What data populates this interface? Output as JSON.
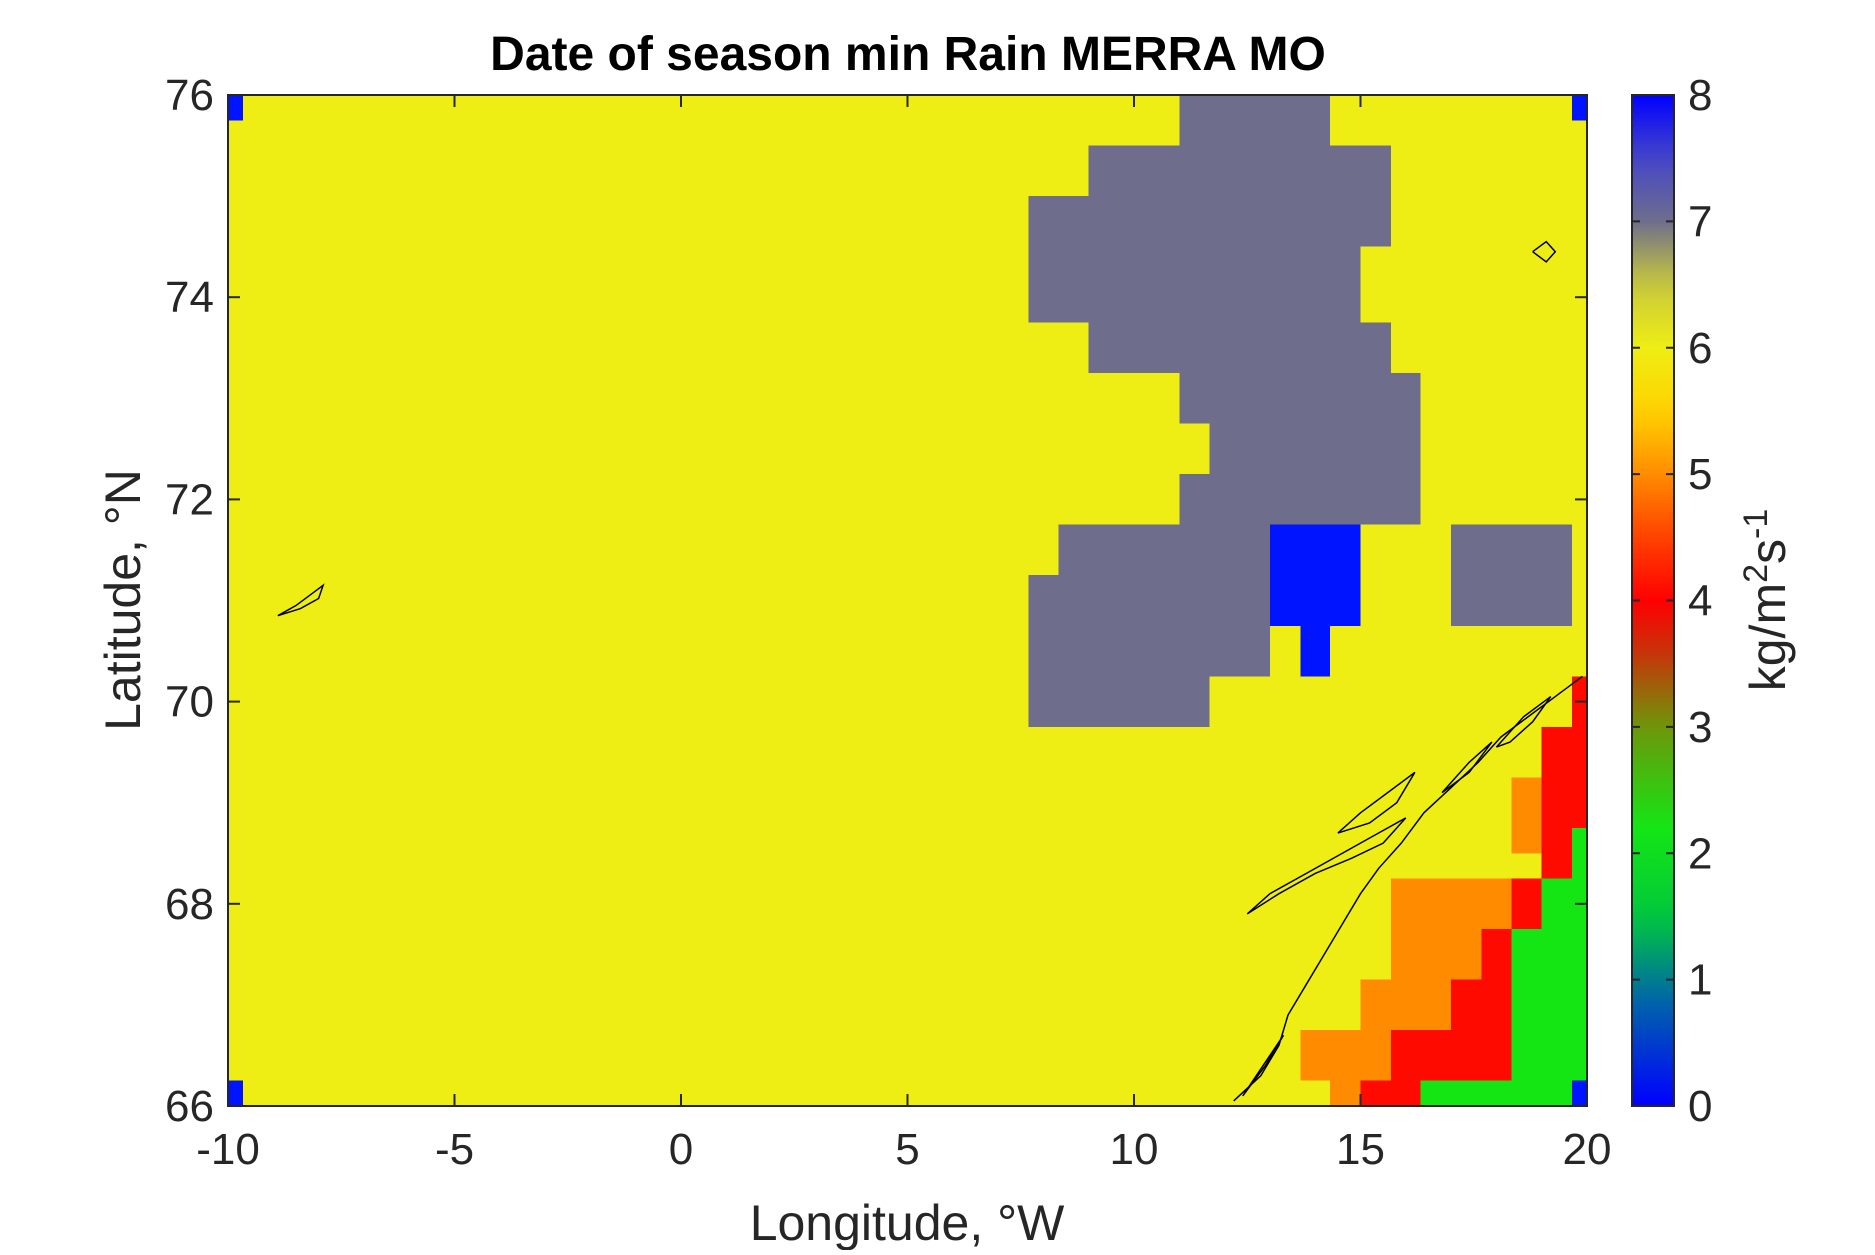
{
  "chart_data": {
    "type": "heatmap",
    "title": "Date of season min Rain MERRA MO",
    "xlabel": "Longitude, °W",
    "ylabel": "Latitude, °N",
    "xlim": [
      -10,
      20
    ],
    "ylim": [
      66,
      76
    ],
    "xticks": [
      "-10",
      "-5",
      "0",
      "5",
      "10",
      "15",
      "20"
    ],
    "yticks": [
      "66",
      "68",
      "70",
      "72",
      "74",
      "76"
    ],
    "colorbar": {
      "label": "kg/m^2s^(-1)",
      "ticks": [
        "0",
        "1",
        "2",
        "3",
        "4",
        "5",
        "6",
        "7",
        "8"
      ],
      "range": [
        0,
        8
      ],
      "colormap": "parula-jet-like (blue → green → red → orange → yellow → gray → blue)"
    },
    "background_value": 6,
    "grid_step": {
      "lon": 0.667,
      "lat": 0.5
    },
    "cells": [
      {
        "lon": [
          -10,
          -9.67
        ],
        "lat": [
          75.75,
          76
        ],
        "value": 8
      },
      {
        "lon": [
          19.67,
          20
        ],
        "lat": [
          75.75,
          76
        ],
        "value": 8
      },
      {
        "lon": [
          -10,
          -9.67
        ],
        "lat": [
          66,
          66.25
        ],
        "value": 8
      },
      {
        "lon": [
          19.67,
          20
        ],
        "lat": [
          66,
          66.25
        ],
        "value": 8
      },
      {
        "lon": [
          11,
          14.33
        ],
        "lat": [
          75.5,
          76
        ],
        "value": 7
      },
      {
        "lon": [
          9,
          15.67
        ],
        "lat": [
          75,
          75.5
        ],
        "value": 7
      },
      {
        "lon": [
          7.67,
          15.67
        ],
        "lat": [
          74.5,
          75
        ],
        "value": 7
      },
      {
        "lon": [
          7.67,
          15
        ],
        "lat": [
          73.75,
          74.5
        ],
        "value": 7
      },
      {
        "lon": [
          9,
          15.67
        ],
        "lat": [
          73.25,
          73.75
        ],
        "value": 7
      },
      {
        "lon": [
          11,
          16.33
        ],
        "lat": [
          72.75,
          73.25
        ],
        "value": 7
      },
      {
        "lon": [
          11.67,
          16.33
        ],
        "lat": [
          72.25,
          72.75
        ],
        "value": 7
      },
      {
        "lon": [
          11,
          16.33
        ],
        "lat": [
          71.75,
          72.25
        ],
        "value": 7
      },
      {
        "lon": [
          8.33,
          13
        ],
        "lat": [
          71.25,
          71.75
        ],
        "value": 7
      },
      {
        "lon": [
          7.67,
          13
        ],
        "lat": [
          70.25,
          71.25
        ],
        "value": 7
      },
      {
        "lon": [
          7.67,
          11.67
        ],
        "lat": [
          69.75,
          70.25
        ],
        "value": 7
      },
      {
        "lon": [
          13,
          15
        ],
        "lat": [
          70.75,
          71.75
        ],
        "value": 0.1
      },
      {
        "lon": [
          13.67,
          14.33
        ],
        "lat": [
          70.25,
          70.75
        ],
        "value": 0.1
      },
      {
        "lon": [
          17,
          19.67
        ],
        "lat": [
          70.75,
          71.75
        ],
        "value": 7
      },
      {
        "lon": [
          19.67,
          20
        ],
        "lat": [
          69.75,
          70.25
        ],
        "value": 4
      },
      {
        "lon": [
          19,
          20
        ],
        "lat": [
          68.75,
          69.75
        ],
        "value": 4
      },
      {
        "lon": [
          18.33,
          19
        ],
        "lat": [
          68.5,
          69.25
        ],
        "value": 5
      },
      {
        "lon": [
          19,
          19.67
        ],
        "lat": [
          68.25,
          68.75
        ],
        "value": 4
      },
      {
        "lon": [
          19.67,
          20
        ],
        "lat": [
          67.75,
          68.75
        ],
        "value": 2
      },
      {
        "lon": [
          15.67,
          18.33
        ],
        "lat": [
          67.75,
          68.25
        ],
        "value": 5
      },
      {
        "lon": [
          18.33,
          19
        ],
        "lat": [
          67.75,
          68.25
        ],
        "value": 4
      },
      {
        "lon": [
          19,
          20
        ],
        "lat": [
          66.25,
          68.25
        ],
        "value": 2
      },
      {
        "lon": [
          15.67,
          17.67
        ],
        "lat": [
          67.25,
          67.75
        ],
        "value": 5
      },
      {
        "lon": [
          17.67,
          18.33
        ],
        "lat": [
          66.75,
          67.75
        ],
        "value": 4
      },
      {
        "lon": [
          18.33,
          19
        ],
        "lat": [
          66.25,
          67.75
        ],
        "value": 2
      },
      {
        "lon": [
          15,
          17
        ],
        "lat": [
          66.75,
          67.25
        ],
        "value": 5
      },
      {
        "lon": [
          17,
          17.67
        ],
        "lat": [
          66.75,
          67.25
        ],
        "value": 4
      },
      {
        "lon": [
          13.67,
          15.67
        ],
        "lat": [
          66.25,
          66.75
        ],
        "value": 5
      },
      {
        "lon": [
          15.67,
          18.33
        ],
        "lat": [
          66.25,
          66.75
        ],
        "value": 4
      },
      {
        "lon": [
          14.33,
          15
        ],
        "lat": [
          66,
          66.25
        ],
        "value": 5
      },
      {
        "lon": [
          15,
          16.33
        ],
        "lat": [
          66,
          66.25
        ],
        "value": 4
      },
      {
        "lon": [
          16.33,
          19.67
        ],
        "lat": [
          66,
          66.25
        ],
        "value": 2
      }
    ],
    "coastlines": [
      {
        "name": "jan-mayen",
        "points": [
          [
            -8.9,
            70.85
          ],
          [
            -8.5,
            70.95
          ],
          [
            -8.2,
            71.05
          ],
          [
            -7.9,
            71.15
          ],
          [
            -8.0,
            71.02
          ],
          [
            -8.4,
            70.92
          ],
          [
            -8.9,
            70.85
          ]
        ]
      },
      {
        "name": "bear-island",
        "points": [
          [
            18.8,
            74.45
          ],
          [
            19.1,
            74.55
          ],
          [
            19.3,
            74.45
          ],
          [
            19.1,
            74.35
          ],
          [
            18.8,
            74.45
          ]
        ]
      },
      {
        "name": "norway-coast",
        "points": [
          [
            12.2,
            66.05
          ],
          [
            12.8,
            66.3
          ],
          [
            13.2,
            66.6
          ],
          [
            13.4,
            66.9
          ],
          [
            13.8,
            67.2
          ],
          [
            14.2,
            67.5
          ],
          [
            14.6,
            67.8
          ],
          [
            15.0,
            68.1
          ],
          [
            15.4,
            68.35
          ],
          [
            15.9,
            68.6
          ],
          [
            16.4,
            68.9
          ],
          [
            17.0,
            69.15
          ],
          [
            17.6,
            69.4
          ],
          [
            18.1,
            69.65
          ],
          [
            18.7,
            69.85
          ],
          [
            19.3,
            70.05
          ],
          [
            19.9,
            70.25
          ]
        ]
      },
      {
        "name": "lofoten",
        "points": [
          [
            12.5,
            67.9
          ],
          [
            13.2,
            68.1
          ],
          [
            14.0,
            68.3
          ],
          [
            14.8,
            68.45
          ],
          [
            15.5,
            68.6
          ],
          [
            16.0,
            68.85
          ],
          [
            15.4,
            68.7
          ],
          [
            14.6,
            68.5
          ],
          [
            13.8,
            68.3
          ],
          [
            13.0,
            68.1
          ],
          [
            12.5,
            67.9
          ]
        ]
      },
      {
        "name": "vesteralen",
        "points": [
          [
            14.5,
            68.7
          ],
          [
            15.0,
            68.9
          ],
          [
            15.6,
            69.1
          ],
          [
            16.2,
            69.3
          ],
          [
            15.8,
            69.0
          ],
          [
            15.2,
            68.8
          ],
          [
            14.5,
            68.7
          ]
        ]
      },
      {
        "name": "senja",
        "points": [
          [
            16.8,
            69.1
          ],
          [
            17.4,
            69.4
          ],
          [
            17.9,
            69.6
          ],
          [
            17.4,
            69.3
          ],
          [
            16.8,
            69.1
          ]
        ]
      },
      {
        "name": "kvaloya",
        "points": [
          [
            18.0,
            69.55
          ],
          [
            18.6,
            69.85
          ],
          [
            19.2,
            70.05
          ],
          [
            18.8,
            69.8
          ],
          [
            18.3,
            69.6
          ],
          [
            18.0,
            69.55
          ]
        ]
      },
      {
        "name": "helgeland-islands",
        "points": [
          [
            12.4,
            66.1
          ],
          [
            12.9,
            66.4
          ],
          [
            13.3,
            66.7
          ],
          [
            13.0,
            66.5
          ],
          [
            12.4,
            66.1
          ]
        ]
      }
    ]
  }
}
